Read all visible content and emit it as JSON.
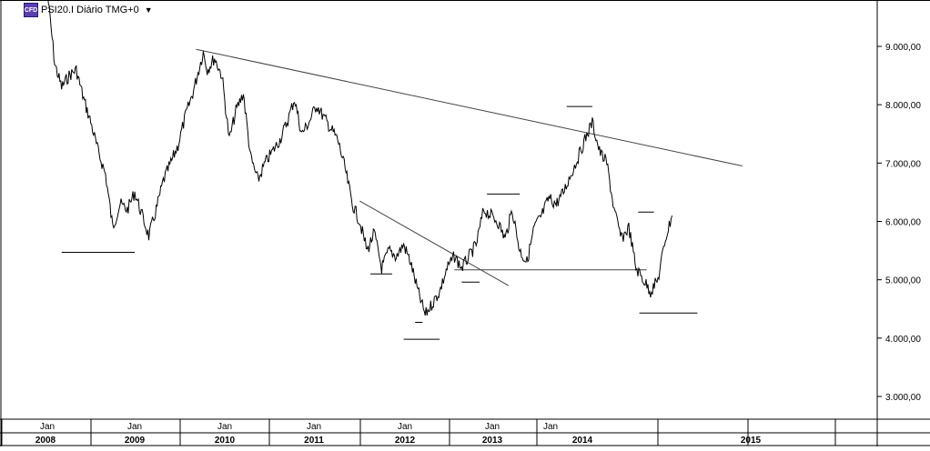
{
  "header": {
    "symbol_label": "PSI20.I Diário TMG+0",
    "app_icon": "cfd-icon",
    "dropdown_icon": "chevron-down-icon"
  },
  "chart_data": {
    "type": "line",
    "ylim": [
      2600,
      9800
    ],
    "y_ticks": [
      3000,
      4000,
      5000,
      6000,
      7000,
      8000,
      9000
    ],
    "y_tick_labels": [
      "3.000,00",
      "4.000,00",
      "5.000,00",
      "6.000,00",
      "7.000,00",
      "8.000,00",
      "9.000,00"
    ],
    "x_years": [
      "2008",
      "2009",
      "2010",
      "2011",
      "2012",
      "2013",
      "2014",
      "2015"
    ],
    "x_month_label": "Jan",
    "x_month_marks": [
      "2008",
      "2009",
      "2010",
      "2011",
      "2012",
      "2013",
      "2014"
    ],
    "x_range": [
      "2008-01-01",
      "2015-12-31"
    ],
    "series": [
      {
        "values": [
          [
            "2008-01-02",
            9900
          ],
          [
            "2008-02-01",
            8700
          ],
          [
            "2008-03-01",
            8300
          ],
          [
            "2008-04-01",
            8500
          ],
          [
            "2008-05-01",
            8600
          ],
          [
            "2008-06-01",
            8100
          ],
          [
            "2008-07-01",
            7700
          ],
          [
            "2008-08-01",
            7200
          ],
          [
            "2008-09-01",
            6800
          ],
          [
            "2008-10-01",
            5900
          ],
          [
            "2008-11-01",
            6300
          ],
          [
            "2008-12-01",
            6200
          ],
          [
            "2009-01-01",
            6500
          ],
          [
            "2009-02-01",
            6100
          ],
          [
            "2009-03-01",
            5750
          ],
          [
            "2009-04-01",
            6200
          ],
          [
            "2009-05-01",
            6700
          ],
          [
            "2009-06-01",
            7000
          ],
          [
            "2009-07-01",
            7300
          ],
          [
            "2009-08-01",
            7800
          ],
          [
            "2009-09-01",
            8200
          ],
          [
            "2009-10-15",
            8900
          ],
          [
            "2009-11-01",
            8600
          ],
          [
            "2009-12-01",
            8800
          ],
          [
            "2010-01-01",
            8500
          ],
          [
            "2010-02-01",
            7400
          ],
          [
            "2010-03-01",
            7900
          ],
          [
            "2010-04-01",
            8200
          ],
          [
            "2010-05-01",
            7100
          ],
          [
            "2010-06-01",
            6700
          ],
          [
            "2010-07-01",
            7000
          ],
          [
            "2010-08-01",
            7200
          ],
          [
            "2010-09-01",
            7400
          ],
          [
            "2010-10-01",
            7700
          ],
          [
            "2010-11-01",
            8100
          ],
          [
            "2010-12-01",
            7500
          ],
          [
            "2011-01-01",
            7700
          ],
          [
            "2011-02-01",
            8000
          ],
          [
            "2011-03-01",
            7800
          ],
          [
            "2011-04-01",
            7600
          ],
          [
            "2011-05-01",
            7400
          ],
          [
            "2011-06-01",
            6900
          ],
          [
            "2011-07-01",
            6300
          ],
          [
            "2011-08-01",
            6000
          ],
          [
            "2011-09-01",
            5500
          ],
          [
            "2011-10-01",
            5800
          ],
          [
            "2011-11-01",
            5200
          ],
          [
            "2011-12-01",
            5500
          ],
          [
            "2012-01-01",
            5400
          ],
          [
            "2012-02-01",
            5600
          ],
          [
            "2012-03-01",
            5300
          ],
          [
            "2012-04-01",
            4800
          ],
          [
            "2012-05-01",
            4400
          ],
          [
            "2012-06-01",
            4600
          ],
          [
            "2012-07-01",
            4800
          ],
          [
            "2012-08-01",
            5200
          ],
          [
            "2012-09-01",
            5400
          ],
          [
            "2012-10-01",
            5200
          ],
          [
            "2012-11-01",
            5400
          ],
          [
            "2012-12-01",
            5600
          ],
          [
            "2013-01-01",
            6200
          ],
          [
            "2013-02-01",
            6100
          ],
          [
            "2013-03-01",
            6000
          ],
          [
            "2013-04-01",
            5700
          ],
          [
            "2013-05-01",
            6200
          ],
          [
            "2013-06-01",
            5500
          ],
          [
            "2013-07-01",
            5300
          ],
          [
            "2013-08-01",
            5900
          ],
          [
            "2013-09-01",
            6100
          ],
          [
            "2013-10-01",
            6400
          ],
          [
            "2013-11-01",
            6300
          ],
          [
            "2013-12-01",
            6500
          ],
          [
            "2014-01-01",
            6800
          ],
          [
            "2014-02-01",
            7100
          ],
          [
            "2014-03-01",
            7400
          ],
          [
            "2014-04-01",
            7700
          ],
          [
            "2014-05-01",
            7200
          ],
          [
            "2014-06-01",
            7000
          ],
          [
            "2014-07-01",
            6200
          ],
          [
            "2014-08-01",
            5700
          ],
          [
            "2014-09-01",
            5900
          ],
          [
            "2014-10-01",
            5200
          ],
          [
            "2014-11-01",
            5000
          ],
          [
            "2014-12-01",
            4800
          ],
          [
            "2015-01-01",
            5000
          ],
          [
            "2015-02-01",
            5700
          ],
          [
            "2015-03-01",
            6100
          ]
        ]
      }
    ],
    "trendlines": [
      {
        "from": [
          "2009-09-15",
          8950
        ],
        "to": [
          "2015-12-20",
          6950
        ]
      },
      {
        "from": [
          "2011-08-01",
          6350
        ],
        "to": [
          "2013-04-15",
          4900
        ]
      },
      {
        "from": [
          "2012-09-01",
          5170
        ],
        "to": [
          "2014-11-15",
          5170
        ]
      }
    ],
    "support_resistance_marks": [
      {
        "from": "2008-03-01",
        "to": "2009-01-01",
        "y": 5470
      },
      {
        "from": "2011-09-15",
        "to": "2011-12-15",
        "y": 5100
      },
      {
        "from": "2012-03-20",
        "to": "2012-04-20",
        "y": 4270
      },
      {
        "from": "2012-02-01",
        "to": "2012-07-01",
        "y": 3980
      },
      {
        "from": "2012-10-01",
        "to": "2012-12-15",
        "y": 4960
      },
      {
        "from": "2013-01-15",
        "to": "2013-06-01",
        "y": 6470
      },
      {
        "from": "2013-12-15",
        "to": "2014-04-01",
        "y": 7970
      },
      {
        "from": "2014-10-10",
        "to": "2014-12-15",
        "y": 6160
      },
      {
        "from": "2014-10-15",
        "to": "2015-06-15",
        "y": 4430
      }
    ]
  }
}
